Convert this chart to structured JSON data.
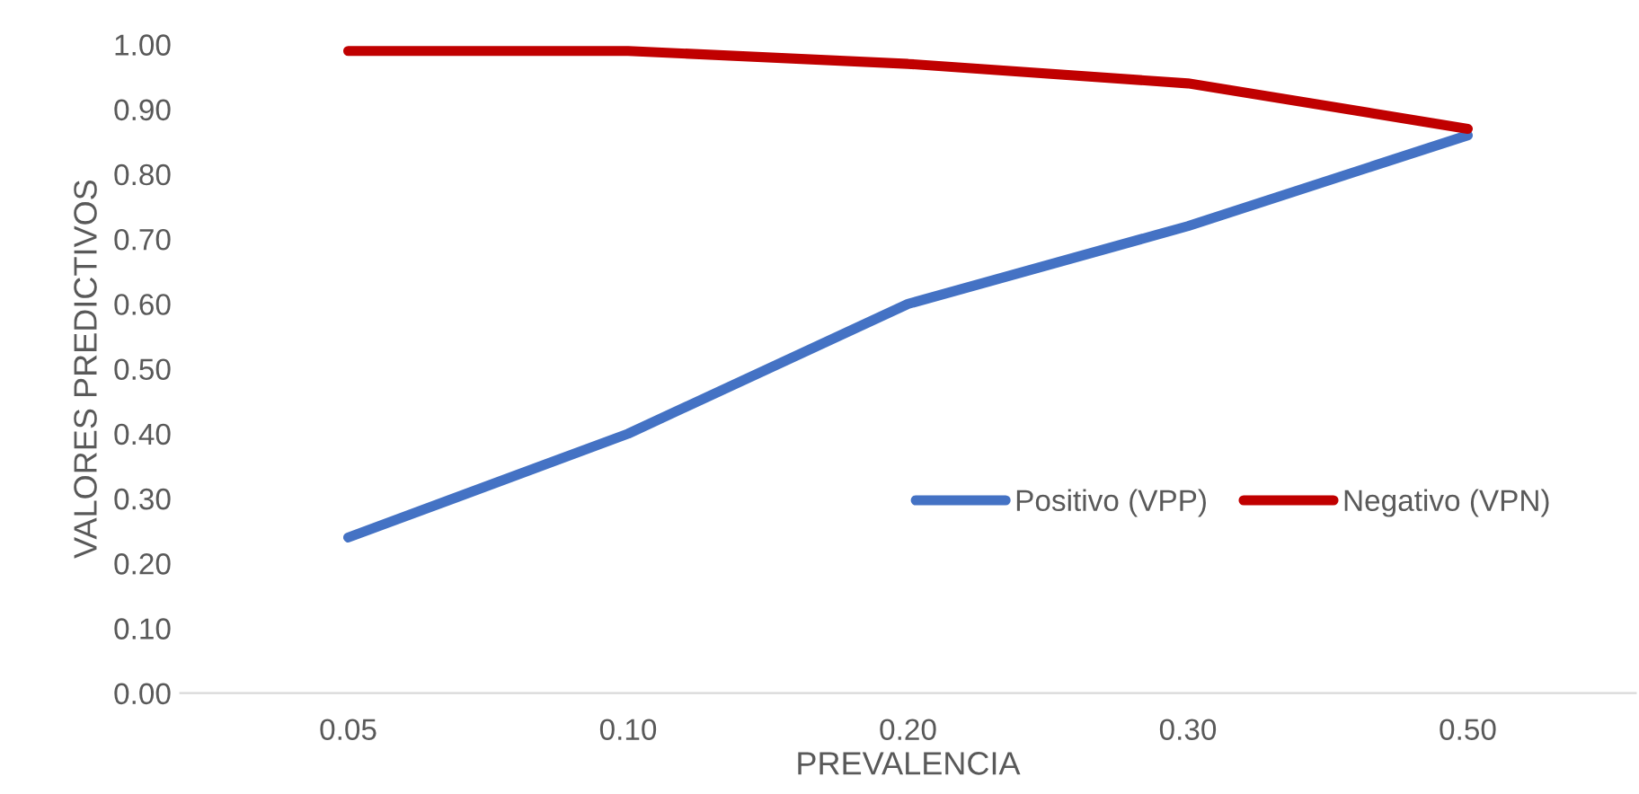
{
  "chart_data": {
    "type": "line",
    "xlabel": "PREVALENCIA",
    "ylabel": "VALORES PREDICTIVOS",
    "categories": [
      "0.05",
      "0.10",
      "0.20",
      "0.30",
      "0.50"
    ],
    "series": [
      {
        "name": "Positivo (VPP)",
        "color": "#4472c4",
        "values": [
          0.24,
          0.4,
          0.6,
          0.72,
          0.86
        ]
      },
      {
        "name": "Negativo (VPN)",
        "color": "#c00000",
        "values": [
          0.99,
          0.99,
          0.97,
          0.94,
          0.87
        ]
      }
    ],
    "ylim": [
      0,
      1
    ],
    "yticks": [
      {
        "value": 0,
        "label": "0.00"
      },
      {
        "value": 0.1,
        "label": "0.10"
      },
      {
        "value": 0.2,
        "label": "0.20"
      },
      {
        "value": 0.3,
        "label": "0.30"
      },
      {
        "value": 0.4,
        "label": "0.40"
      },
      {
        "value": 0.5,
        "label": "0.50"
      },
      {
        "value": 0.6,
        "label": "0.60"
      },
      {
        "value": 0.7,
        "label": "0.70"
      },
      {
        "value": 0.8,
        "label": "0.80"
      },
      {
        "value": 0.9,
        "label": "0.90"
      },
      {
        "value": 1,
        "label": "1.00"
      }
    ],
    "grid": false,
    "legend": "lower right",
    "marker": "none",
    "line_style": "solid"
  }
}
